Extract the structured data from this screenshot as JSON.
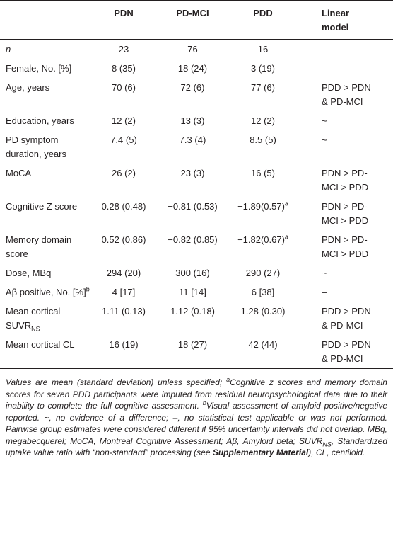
{
  "table": {
    "header": [
      "",
      "PDN",
      "PD-MCI",
      "PDD",
      "Linear model"
    ],
    "rows": [
      [
        {
          "text": "n"
        },
        "23",
        "76",
        "16",
        "–"
      ],
      [
        {
          "text": "Female, No. [%]"
        },
        "8 (35)",
        "18 (24)",
        "3 (19)",
        "–"
      ],
      [
        {
          "text": "Age, years"
        },
        "70 (6)",
        "72 (6)",
        "77 (6)",
        "PDD > PDN & PD-MCI"
      ],
      [
        {
          "text": "Education, years"
        },
        "12 (2)",
        "13 (3)",
        "12 (2)",
        "~"
      ],
      [
        {
          "text": "PD symptom duration, years"
        },
        "7.4 (5)",
        "7.3 (4)",
        "8.5 (5)",
        "~"
      ],
      [
        {
          "text": "MoCA"
        },
        "26 (2)",
        "23 (3)",
        "16 (5)",
        "PDN > PD-MCI > PDD"
      ],
      [
        {
          "text": "Cognitive Z score"
        },
        "0.28 (0.48)",
        "−0.81 (0.53)",
        {
          "text": "−1.89(0.57)",
          "sup": "a"
        },
        "PDN > PD-MCI > PDD"
      ],
      [
        {
          "text": "Memory domain score"
        },
        "0.52 (0.86)",
        "−0.82 (0.85)",
        {
          "text": "−1.82(0.67)",
          "sup": "a"
        },
        "PDN > PD-MCI > PDD"
      ],
      [
        {
          "text": "Dose, MBq"
        },
        "294 (20)",
        "300 (16)",
        "290 (27)",
        "~"
      ],
      [
        {
          "text": "Aβ positive, No. [%]",
          "sup": "b"
        },
        "4 [17]",
        "11 [14]",
        "6 [38]",
        "–"
      ],
      [
        {
          "text": "Mean cortical SUVR",
          "sub": "NS"
        },
        "1.11 (0.13)",
        "1.12 (0.18)",
        "1.28 (0.30)",
        "PDD > PDN & PD-MCI"
      ],
      [
        {
          "text": "Mean cortical CL"
        },
        "16 (19)",
        "18 (27)",
        "42 (44)",
        "PDD > PDN & PD-MCI"
      ]
    ]
  },
  "footnote": [
    "Values are mean (standard deviation) unless specified; ",
    "a",
    "Cognitive z scores and memory domain scores for seven PDD participants were imputed from residual neuropsychological data due to their inability to complete the full cognitive assessment. ",
    "b",
    "Visual assessment of amyloid positive/negative reported. ~, no evidence of a difference; –, no statistical test applicable or was not performed. Pairwise group estimates were considered different if 95% uncertainty intervals did not overlap. MBq, megabecquerel; MoCA, Montreal Cognitive Assessment; Aβ, Amyloid beta; SUVR",
    "NS",
    ", Standardized uptake value ratio with “non-standard” processing (see ",
    "Supplementary Material",
    "), CL, centiloid."
  ]
}
